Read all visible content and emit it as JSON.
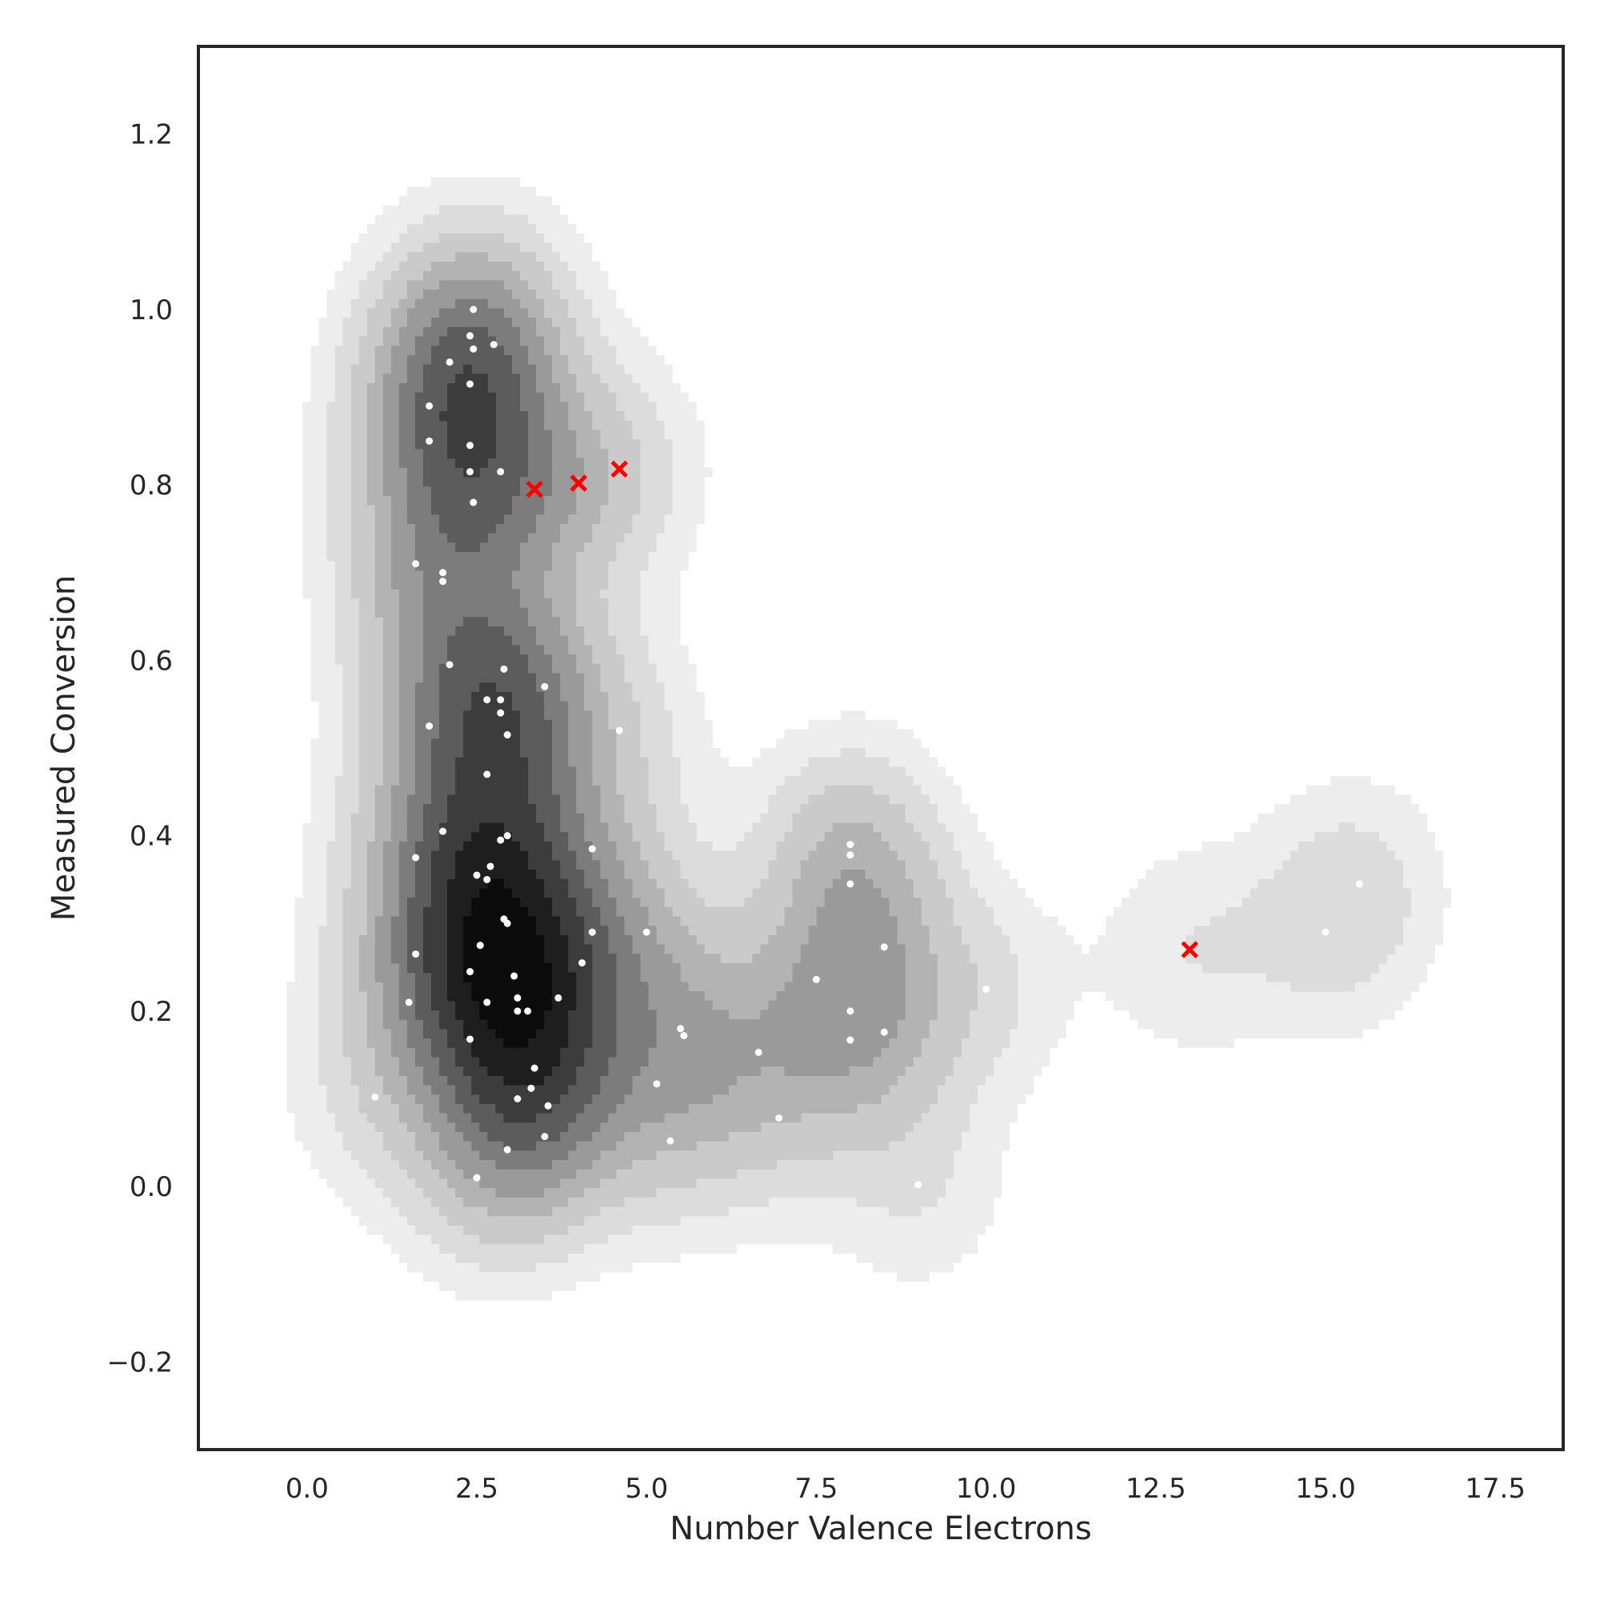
{
  "chart_data": {
    "type": "scatter",
    "overlay": "kde-density-contours",
    "xlabel": "Number Valence Electrons",
    "ylabel": "Measured Conversion",
    "xlim": [
      -1.6,
      18.5
    ],
    "ylim": [
      -0.3,
      1.3
    ],
    "xticks": [
      0.0,
      2.5,
      5.0,
      7.5,
      10.0,
      12.5,
      15.0,
      17.5
    ],
    "xtick_labels": [
      "0.0",
      "2.5",
      "5.0",
      "7.5",
      "10.0",
      "12.5",
      "15.0",
      "17.5"
    ],
    "yticks": [
      -0.2,
      0.0,
      0.2,
      0.4,
      0.6,
      0.8,
      1.0,
      1.2
    ],
    "ytick_labels": [
      "−0.2",
      "0.0",
      "0.2",
      "0.4",
      "0.6",
      "0.8",
      "1.0",
      "1.2"
    ],
    "grid": false,
    "series": [
      {
        "marker": "dot",
        "color": "#ffffff",
        "points": [
          [
            2.45,
            1.0
          ],
          [
            2.4,
            0.97
          ],
          [
            2.45,
            0.955
          ],
          [
            2.75,
            0.96
          ],
          [
            2.1,
            0.94
          ],
          [
            1.8,
            0.89
          ],
          [
            2.4,
            0.915
          ],
          [
            1.8,
            0.85
          ],
          [
            2.4,
            0.845
          ],
          [
            2.4,
            0.815
          ],
          [
            2.85,
            0.815
          ],
          [
            2.45,
            0.78
          ],
          [
            1.6,
            0.71
          ],
          [
            2.0,
            0.7
          ],
          [
            2.0,
            0.69
          ],
          [
            2.1,
            0.595
          ],
          [
            2.9,
            0.59
          ],
          [
            3.5,
            0.57
          ],
          [
            2.65,
            0.555
          ],
          [
            2.85,
            0.555
          ],
          [
            2.85,
            0.54
          ],
          [
            1.8,
            0.525
          ],
          [
            4.6,
            0.52
          ],
          [
            2.95,
            0.515
          ],
          [
            2.65,
            0.47
          ],
          [
            2.0,
            0.405
          ],
          [
            2.95,
            0.4
          ],
          [
            2.85,
            0.395
          ],
          [
            4.2,
            0.385
          ],
          [
            1.6,
            0.375
          ],
          [
            2.7,
            0.365
          ],
          [
            2.5,
            0.355
          ],
          [
            2.65,
            0.35
          ],
          [
            2.9,
            0.305
          ],
          [
            2.95,
            0.3
          ],
          [
            5.0,
            0.29
          ],
          [
            4.2,
            0.29
          ],
          [
            2.55,
            0.275
          ],
          [
            1.6,
            0.265
          ],
          [
            4.05,
            0.255
          ],
          [
            2.4,
            0.245
          ],
          [
            3.05,
            0.24
          ],
          [
            3.7,
            0.215
          ],
          [
            3.1,
            0.215
          ],
          [
            1.5,
            0.21
          ],
          [
            2.65,
            0.21
          ],
          [
            3.1,
            0.2
          ],
          [
            3.25,
            0.2
          ],
          [
            5.5,
            0.18
          ],
          [
            5.55,
            0.172
          ],
          [
            2.4,
            0.168
          ],
          [
            6.65,
            0.153
          ],
          [
            3.35,
            0.135
          ],
          [
            5.15,
            0.117
          ],
          [
            3.3,
            0.112
          ],
          [
            3.1,
            0.1
          ],
          [
            1.0,
            0.102
          ],
          [
            3.55,
            0.092
          ],
          [
            6.95,
            0.078
          ],
          [
            3.5,
            0.057
          ],
          [
            5.35,
            0.052
          ],
          [
            2.95,
            0.042
          ],
          [
            2.5,
            0.01
          ],
          [
            9.0,
            0.002
          ],
          [
            8.0,
            0.39
          ],
          [
            8.0,
            0.378
          ],
          [
            8.0,
            0.345
          ],
          [
            8.5,
            0.273
          ],
          [
            7.5,
            0.236
          ],
          [
            10.0,
            0.225
          ],
          [
            8.0,
            0.2
          ],
          [
            8.5,
            0.176
          ],
          [
            8.0,
            0.167
          ],
          [
            15.5,
            0.345
          ],
          [
            15.0,
            0.29
          ]
        ]
      },
      {
        "marker": "x",
        "color": "#ff0000",
        "points": [
          [
            3.35,
            0.795
          ],
          [
            4.0,
            0.802
          ],
          [
            4.6,
            0.818
          ],
          [
            13.0,
            0.27
          ]
        ]
      }
    ]
  }
}
